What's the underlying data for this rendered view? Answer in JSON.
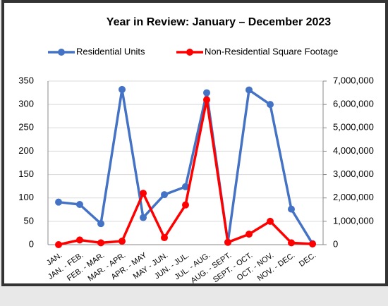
{
  "chart_data": {
    "type": "line",
    "title": "Year in Review: January – December 2023",
    "categories": [
      "JAN.",
      "JAN. - FEB.",
      "FEB. - MAR.",
      "MAR. - APR.",
      "APR. - MAY",
      "MAY - JUN.",
      "JUN. - JUL.",
      "JUL. - AUG.",
      "AUG. - SEPT.",
      "SEPT. - OCT.",
      "OCT. - NOV.",
      "NOV. - DEC.",
      "DEC."
    ],
    "series": [
      {
        "name": "Residential Units",
        "color": "#4472c4",
        "values": [
          91,
          86,
          45,
          332,
          58,
          107,
          124,
          325,
          5,
          331,
          300,
          76,
          2
        ]
      },
      {
        "name": "Non-Residential Square Footage",
        "color": "#ff0000",
        "axis": "y2",
        "values": [
          0,
          200000,
          80000,
          150000,
          2200000,
          300000,
          1700000,
          6200000,
          100000,
          450000,
          1000000,
          80000,
          30000
        ]
      }
    ],
    "ylim": [
      0,
      350
    ],
    "yticks": [
      0,
      50,
      100,
      150,
      200,
      250,
      300,
      350
    ],
    "y2lim": [
      0,
      7000000
    ],
    "y2ticks": [
      0,
      {
        "value": 1000000,
        "label": "1,000,000"
      },
      {
        "value": 2000000,
        "label": "2,000,000"
      },
      {
        "value": 3000000,
        "label": "3,000,000"
      },
      {
        "value": 4000000,
        "label": "4,000,000"
      },
      {
        "value": 5000000,
        "label": "5,000,000"
      },
      {
        "value": 6000000,
        "label": "6,000,000"
      },
      {
        "value": 7000000,
        "label": "7,000,000"
      }
    ],
    "grid": true,
    "legend": "top"
  }
}
